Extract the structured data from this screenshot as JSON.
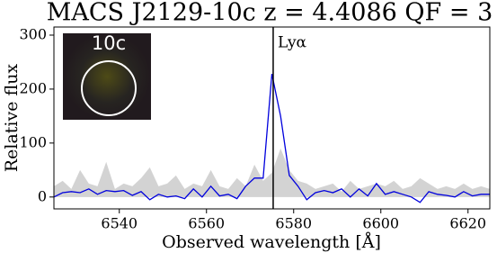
{
  "chart_data": {
    "type": "line",
    "title": "MACS J2129-10c z = 4.4086 QF = 3",
    "x_label": "Observed wavelength [Å]",
    "y_label": "Relative flux",
    "x": [
      6525,
      6527,
      6529,
      6531,
      6533,
      6535,
      6537,
      6539,
      6541,
      6543,
      6545,
      6547,
      6549,
      6551,
      6553,
      6555,
      6557,
      6559,
      6561,
      6563,
      6565,
      6567,
      6569,
      6571,
      6573,
      6575,
      6577,
      6579,
      6581,
      6583,
      6585,
      6587,
      6589,
      6591,
      6593,
      6595,
      6597,
      6599,
      6601,
      6603,
      6605,
      6607,
      6609,
      6611,
      6613,
      6615,
      6617,
      6619,
      6621,
      6623,
      6625
    ],
    "series": [
      {
        "type": "area",
        "color": "#d3d3d3",
        "values": [
          20,
          30,
          15,
          50,
          25,
          20,
          65,
          15,
          25,
          20,
          35,
          55,
          20,
          25,
          40,
          15,
          25,
          20,
          50,
          20,
          15,
          35,
          20,
          60,
          30,
          45,
          90,
          50,
          30,
          25,
          15,
          20,
          25,
          10,
          30,
          15,
          20,
          25,
          20,
          30,
          15,
          20,
          35,
          25,
          15,
          20,
          15,
          25,
          15,
          20,
          15
        ]
      },
      {
        "type": "line",
        "color": "#0000dd",
        "values": [
          0,
          8,
          10,
          8,
          15,
          5,
          12,
          10,
          12,
          3,
          10,
          -5,
          5,
          0,
          2,
          -3,
          15,
          0,
          20,
          2,
          5,
          -3,
          20,
          35,
          35,
          228,
          150,
          40,
          20,
          -5,
          8,
          12,
          8,
          15,
          0,
          15,
          2,
          25,
          5,
          10,
          5,
          0,
          -10,
          10,
          5,
          3,
          0,
          10,
          2,
          5,
          5
        ]
      }
    ],
    "annotations": [
      {
        "text": "Lyα",
        "x": 6575.3
      }
    ],
    "inset_label": "10c",
    "xlim": [
      6525,
      6625
    ],
    "xticks": [
      6540,
      6560,
      6580,
      6600,
      6620
    ],
    "ylim": [
      -22,
      315
    ],
    "yticks": [
      0,
      100,
      200,
      300
    ],
    "grid": false
  }
}
